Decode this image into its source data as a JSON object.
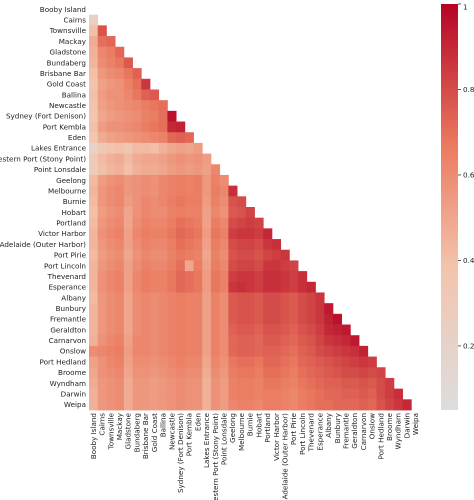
{
  "chart_data": {
    "type": "heatmap",
    "title": "",
    "xlabel": "",
    "ylabel": "",
    "labels": [
      "Booby Island",
      "Cairns",
      "Townsville",
      "Mackay",
      "Gladstone",
      "Bundaberg",
      "Brisbane Bar",
      "Gold Coast",
      "Ballina",
      "Newcastle",
      "Sydney (Fort Denison)",
      "Port Kembla",
      "Eden",
      "Lakes Entrance",
      "Western Port (Stony Point)",
      "Point Lonsdale",
      "Geelong",
      "Melbourne",
      "Burnie",
      "Hobart",
      "Portland",
      "Victor Harbor",
      "Port Adelaide (Outer Harbor)",
      "Port Pirie",
      "Port Lincoln",
      "Thevenard",
      "Esperance",
      "Albany",
      "Bunbury",
      "Fremantle",
      "Geraldton",
      "Carnarvon",
      "Onslow",
      "Port Hedland",
      "Broome",
      "Wyndham",
      "Darwin",
      "Weipa"
    ],
    "mask": "upper-triangle-and-diagonal",
    "colorscale": {
      "name": "coolwarm-upper-half",
      "low": "#dcdddd",
      "mid": "#f08a6c",
      "high": "#b40426"
    },
    "colorbar": {
      "vmin": 0.05,
      "vmax": 1.0,
      "ticks": [
        0.2,
        0.4,
        0.6,
        0.8,
        1.0
      ],
      "tick_labels": [
        "0.2",
        "0.4",
        "0.6",
        "0.8",
        "1"
      ]
    },
    "values": [
      [],
      [
        0.22
      ],
      [
        0.4,
        0.78
      ],
      [
        0.48,
        0.7,
        0.72
      ],
      [
        0.46,
        0.62,
        0.66,
        0.72
      ],
      [
        0.44,
        0.6,
        0.64,
        0.68,
        0.76
      ],
      [
        0.4,
        0.56,
        0.6,
        0.62,
        0.68,
        0.74
      ],
      [
        0.38,
        0.52,
        0.56,
        0.58,
        0.64,
        0.7,
        0.86
      ],
      [
        0.4,
        0.54,
        0.58,
        0.58,
        0.62,
        0.68,
        0.74,
        0.76
      ],
      [
        0.38,
        0.52,
        0.56,
        0.58,
        0.6,
        0.62,
        0.66,
        0.68,
        0.7
      ],
      [
        0.36,
        0.5,
        0.54,
        0.56,
        0.58,
        0.6,
        0.64,
        0.66,
        0.7,
        0.96
      ],
      [
        0.4,
        0.54,
        0.58,
        0.58,
        0.6,
        0.62,
        0.66,
        0.68,
        0.7,
        0.9,
        0.92
      ],
      [
        0.35,
        0.48,
        0.52,
        0.54,
        0.56,
        0.58,
        0.6,
        0.62,
        0.64,
        0.72,
        0.74,
        0.72
      ],
      [
        0.2,
        0.32,
        0.38,
        0.4,
        0.36,
        0.42,
        0.42,
        0.4,
        0.46,
        0.5,
        0.52,
        0.5,
        0.54
      ],
      [
        0.3,
        0.42,
        0.46,
        0.48,
        0.42,
        0.48,
        0.5,
        0.5,
        0.52,
        0.56,
        0.58,
        0.56,
        0.58,
        0.54
      ],
      [
        0.28,
        0.4,
        0.44,
        0.46,
        0.4,
        0.46,
        0.48,
        0.48,
        0.5,
        0.54,
        0.56,
        0.54,
        0.56,
        0.52,
        0.62
      ],
      [
        0.42,
        0.54,
        0.58,
        0.6,
        0.56,
        0.58,
        0.6,
        0.58,
        0.62,
        0.64,
        0.66,
        0.64,
        0.66,
        0.56,
        0.64,
        0.6
      ],
      [
        0.44,
        0.56,
        0.6,
        0.62,
        0.56,
        0.58,
        0.6,
        0.58,
        0.62,
        0.64,
        0.66,
        0.64,
        0.66,
        0.56,
        0.66,
        0.62,
        0.88
      ],
      [
        0.42,
        0.56,
        0.6,
        0.62,
        0.54,
        0.58,
        0.62,
        0.6,
        0.62,
        0.66,
        0.68,
        0.66,
        0.66,
        0.54,
        0.64,
        0.6,
        0.78,
        0.8
      ],
      [
        0.4,
        0.54,
        0.58,
        0.6,
        0.5,
        0.58,
        0.62,
        0.6,
        0.6,
        0.64,
        0.66,
        0.64,
        0.64,
        0.52,
        0.62,
        0.58,
        0.76,
        0.78,
        0.82
      ],
      [
        0.42,
        0.56,
        0.6,
        0.62,
        0.5,
        0.6,
        0.64,
        0.62,
        0.62,
        0.66,
        0.7,
        0.68,
        0.66,
        0.52,
        0.66,
        0.62,
        0.8,
        0.82,
        0.84,
        0.82
      ],
      [
        0.44,
        0.58,
        0.62,
        0.64,
        0.52,
        0.62,
        0.66,
        0.64,
        0.64,
        0.68,
        0.72,
        0.7,
        0.68,
        0.54,
        0.68,
        0.64,
        0.84,
        0.86,
        0.86,
        0.84,
        0.9
      ],
      [
        0.44,
        0.56,
        0.6,
        0.62,
        0.52,
        0.6,
        0.64,
        0.62,
        0.62,
        0.66,
        0.7,
        0.68,
        0.66,
        0.52,
        0.66,
        0.62,
        0.8,
        0.82,
        0.82,
        0.8,
        0.86,
        0.88
      ],
      [
        0.42,
        0.54,
        0.58,
        0.6,
        0.5,
        0.58,
        0.62,
        0.6,
        0.6,
        0.64,
        0.68,
        0.66,
        0.64,
        0.5,
        0.64,
        0.6,
        0.78,
        0.8,
        0.8,
        0.78,
        0.82,
        0.84,
        0.86
      ],
      [
        0.44,
        0.56,
        0.6,
        0.62,
        0.52,
        0.6,
        0.64,
        0.62,
        0.62,
        0.66,
        0.7,
        0.5,
        0.66,
        0.52,
        0.66,
        0.62,
        0.8,
        0.82,
        0.82,
        0.8,
        0.86,
        0.86,
        0.84,
        0.82
      ],
      [
        0.44,
        0.58,
        0.62,
        0.64,
        0.52,
        0.62,
        0.66,
        0.64,
        0.64,
        0.68,
        0.72,
        0.7,
        0.68,
        0.54,
        0.68,
        0.64,
        0.84,
        0.86,
        0.86,
        0.84,
        0.88,
        0.88,
        0.86,
        0.84,
        0.88
      ],
      [
        0.44,
        0.58,
        0.62,
        0.64,
        0.52,
        0.62,
        0.66,
        0.64,
        0.64,
        0.68,
        0.72,
        0.7,
        0.68,
        0.54,
        0.68,
        0.64,
        0.86,
        0.88,
        0.86,
        0.84,
        0.88,
        0.88,
        0.86,
        0.84,
        0.88,
        0.9
      ],
      [
        0.42,
        0.56,
        0.6,
        0.62,
        0.5,
        0.6,
        0.62,
        0.6,
        0.62,
        0.64,
        0.66,
        0.64,
        0.64,
        0.52,
        0.64,
        0.6,
        0.76,
        0.78,
        0.78,
        0.76,
        0.8,
        0.8,
        0.78,
        0.76,
        0.8,
        0.82,
        0.86
      ],
      [
        0.44,
        0.56,
        0.6,
        0.62,
        0.5,
        0.6,
        0.62,
        0.6,
        0.62,
        0.64,
        0.66,
        0.64,
        0.64,
        0.52,
        0.64,
        0.6,
        0.76,
        0.78,
        0.78,
        0.76,
        0.8,
        0.8,
        0.78,
        0.76,
        0.8,
        0.82,
        0.86,
        0.94
      ],
      [
        0.44,
        0.56,
        0.6,
        0.62,
        0.5,
        0.6,
        0.62,
        0.6,
        0.62,
        0.64,
        0.66,
        0.64,
        0.64,
        0.52,
        0.64,
        0.6,
        0.76,
        0.78,
        0.78,
        0.76,
        0.8,
        0.8,
        0.78,
        0.76,
        0.8,
        0.82,
        0.86,
        0.92,
        0.96
      ],
      [
        0.44,
        0.56,
        0.6,
        0.62,
        0.5,
        0.6,
        0.62,
        0.6,
        0.62,
        0.64,
        0.66,
        0.64,
        0.64,
        0.52,
        0.64,
        0.6,
        0.74,
        0.76,
        0.76,
        0.74,
        0.78,
        0.78,
        0.76,
        0.74,
        0.78,
        0.8,
        0.84,
        0.9,
        0.92,
        0.94
      ],
      [
        0.46,
        0.58,
        0.62,
        0.64,
        0.52,
        0.62,
        0.62,
        0.6,
        0.62,
        0.64,
        0.66,
        0.64,
        0.64,
        0.52,
        0.64,
        0.6,
        0.72,
        0.74,
        0.74,
        0.72,
        0.76,
        0.76,
        0.74,
        0.72,
        0.76,
        0.78,
        0.82,
        0.86,
        0.88,
        0.9,
        0.94
      ],
      [
        0.6,
        0.62,
        0.64,
        0.66,
        0.54,
        0.62,
        0.62,
        0.6,
        0.62,
        0.64,
        0.66,
        0.64,
        0.64,
        0.52,
        0.64,
        0.6,
        0.72,
        0.74,
        0.74,
        0.72,
        0.74,
        0.74,
        0.72,
        0.7,
        0.74,
        0.76,
        0.8,
        0.82,
        0.84,
        0.86,
        0.88,
        0.92
      ],
      [
        0.52,
        0.58,
        0.62,
        0.64,
        0.52,
        0.6,
        0.6,
        0.58,
        0.6,
        0.62,
        0.64,
        0.62,
        0.62,
        0.5,
        0.62,
        0.58,
        0.68,
        0.7,
        0.7,
        0.68,
        0.72,
        0.72,
        0.7,
        0.68,
        0.72,
        0.74,
        0.76,
        0.78,
        0.8,
        0.82,
        0.84,
        0.86,
        0.84
      ],
      [
        0.5,
        0.58,
        0.6,
        0.62,
        0.5,
        0.58,
        0.58,
        0.56,
        0.58,
        0.6,
        0.62,
        0.6,
        0.6,
        0.48,
        0.6,
        0.56,
        0.66,
        0.68,
        0.68,
        0.66,
        0.7,
        0.7,
        0.68,
        0.66,
        0.7,
        0.72,
        0.74,
        0.76,
        0.78,
        0.8,
        0.8,
        0.82,
        0.8,
        0.82
      ],
      [
        0.48,
        0.56,
        0.58,
        0.6,
        0.48,
        0.56,
        0.56,
        0.54,
        0.56,
        0.58,
        0.6,
        0.58,
        0.58,
        0.46,
        0.58,
        0.54,
        0.64,
        0.66,
        0.66,
        0.64,
        0.68,
        0.68,
        0.66,
        0.64,
        0.68,
        0.7,
        0.72,
        0.74,
        0.74,
        0.76,
        0.76,
        0.78,
        0.76,
        0.8,
        0.84
      ],
      [
        0.46,
        0.56,
        0.58,
        0.6,
        0.48,
        0.56,
        0.56,
        0.54,
        0.56,
        0.58,
        0.6,
        0.58,
        0.58,
        0.46,
        0.58,
        0.54,
        0.64,
        0.66,
        0.66,
        0.64,
        0.66,
        0.66,
        0.64,
        0.62,
        0.66,
        0.68,
        0.7,
        0.72,
        0.72,
        0.74,
        0.74,
        0.76,
        0.74,
        0.8,
        0.84,
        0.88
      ],
      [
        0.46,
        0.56,
        0.58,
        0.6,
        0.48,
        0.56,
        0.56,
        0.54,
        0.56,
        0.58,
        0.6,
        0.58,
        0.58,
        0.46,
        0.58,
        0.54,
        0.62,
        0.64,
        0.64,
        0.62,
        0.66,
        0.66,
        0.64,
        0.62,
        0.66,
        0.68,
        0.7,
        0.7,
        0.72,
        0.72,
        0.72,
        0.74,
        0.72,
        0.78,
        0.82,
        0.86,
        0.9
      ]
    ]
  }
}
